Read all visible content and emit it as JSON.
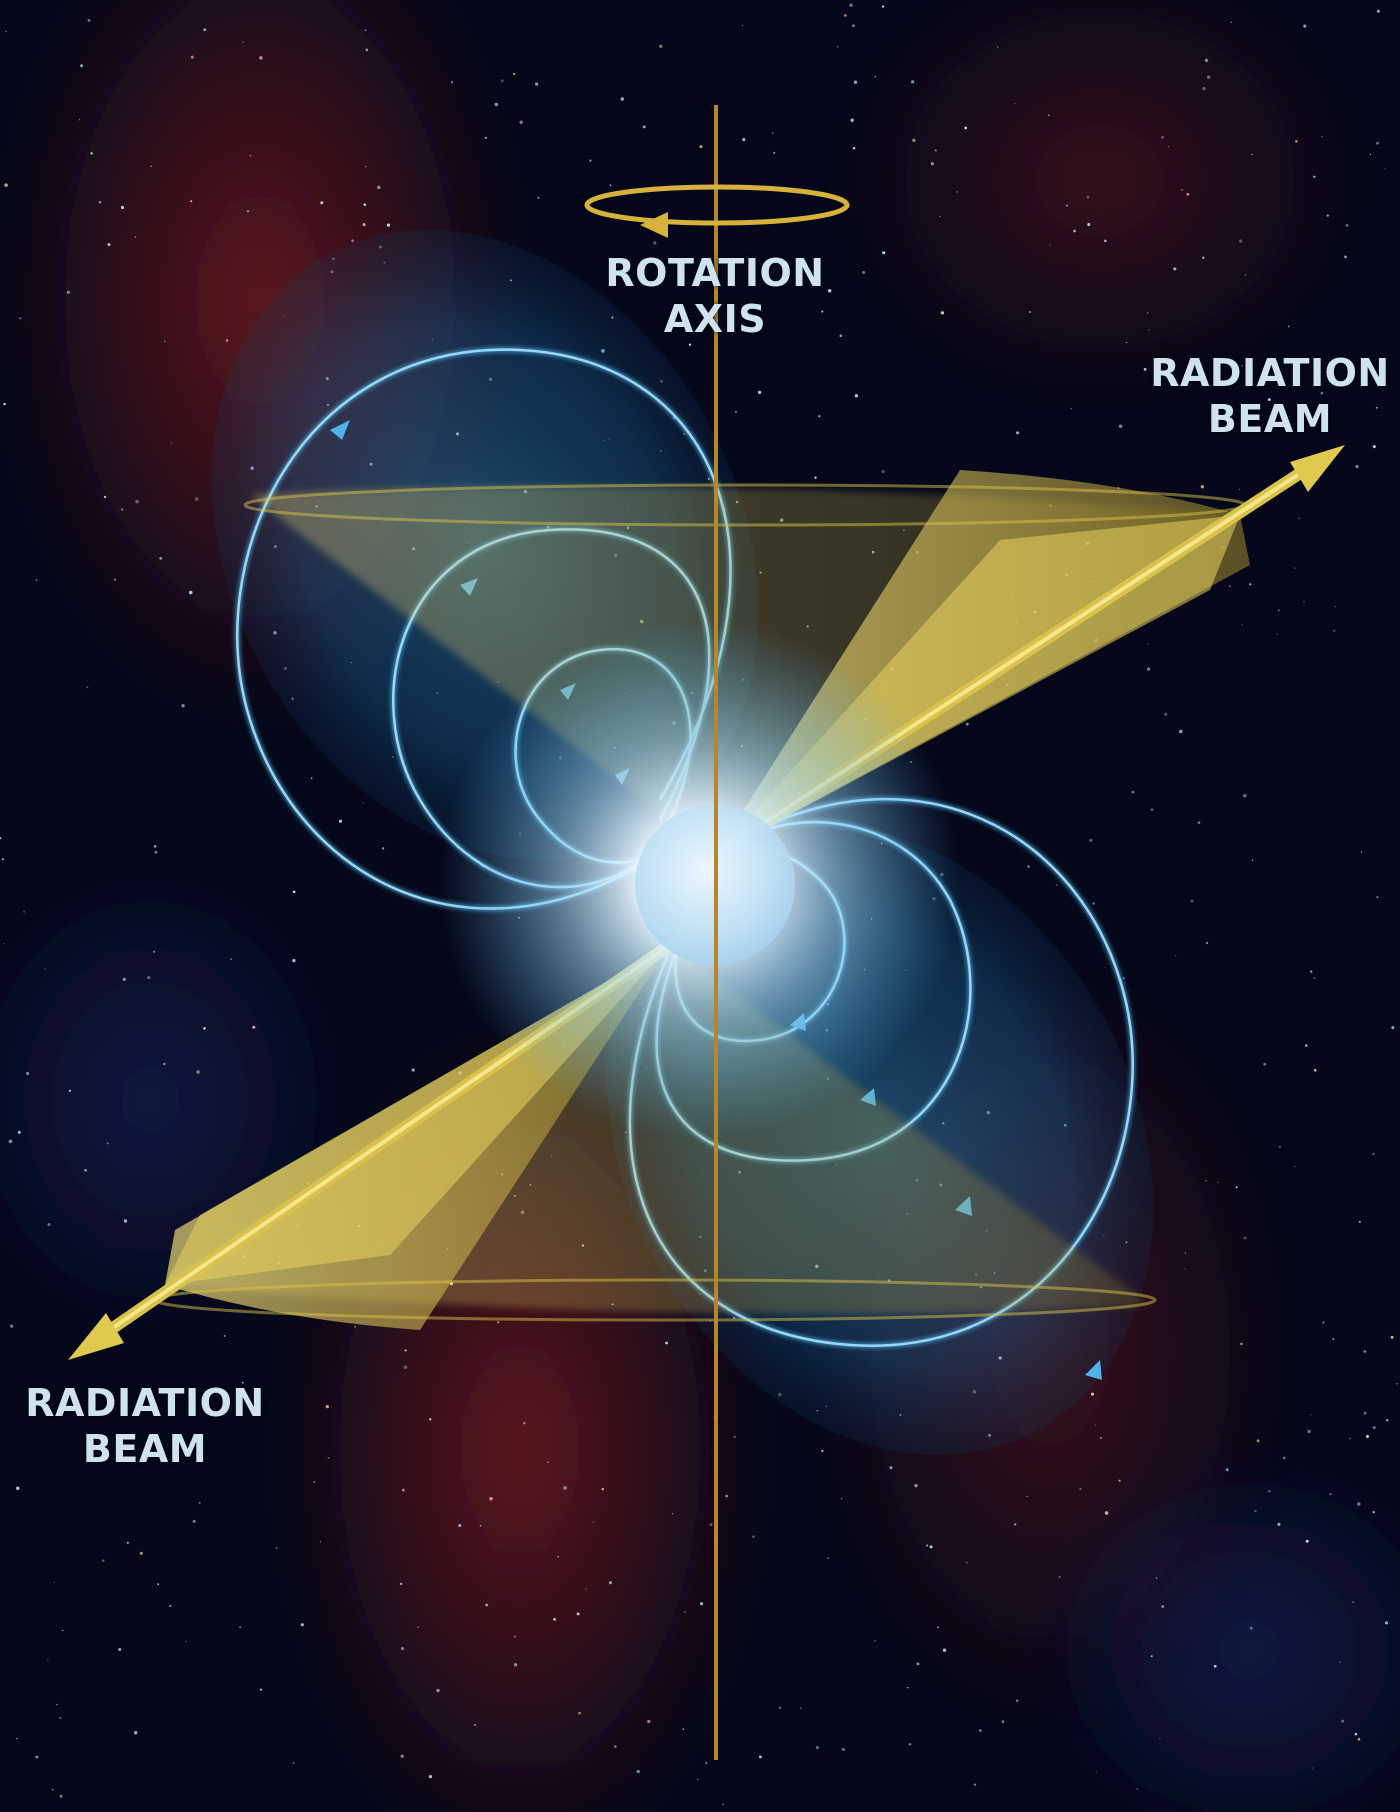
{
  "labels": {
    "rotation_axis": {
      "line1": "ROTATION",
      "line2": "AXIS"
    },
    "radiation_beam_top": {
      "line1": "RADIATION",
      "line2": "BEAM"
    },
    "radiation_beam_bottom": {
      "line1": "RADIATION",
      "line2": "BEAM"
    }
  },
  "colors": {
    "background": "#05081a",
    "nebula": "#6b1418",
    "field_lines": "#4fb3e8",
    "beam": "#d9c24a",
    "axis": "#b8862a",
    "label": "#cfe2f0",
    "star_core": "#e8f6ff"
  }
}
